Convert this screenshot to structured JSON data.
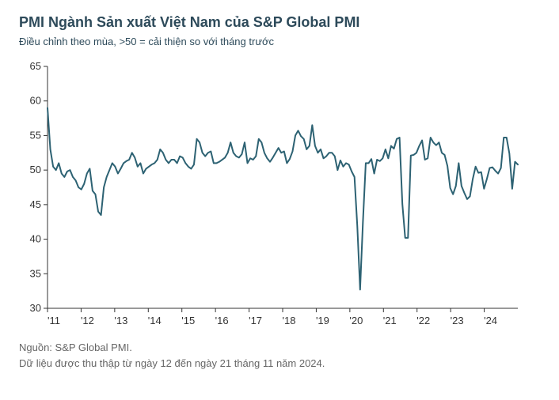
{
  "title": "PMI Ngành Sản xuất Việt Nam của S&P Global PMI",
  "subtitle": "Điều chỉnh theo mùa, >50 = cải thiện so với tháng trước",
  "source_line1": "Nguồn: S&P Global PMI.",
  "source_line2": "Dữ liệu được thu thập từ ngày 12 đến ngày 21 tháng 11 năm 2024.",
  "chart": {
    "type": "line",
    "ylim": [
      30,
      65
    ],
    "ytick_step": 5,
    "yticks": [
      30,
      35,
      40,
      45,
      50,
      55,
      60,
      65
    ],
    "xlabels": [
      "'11",
      "'12",
      "'13",
      "'14",
      "'15",
      "'16",
      "'17",
      "'18",
      "'19",
      "'20",
      "'21",
      "'22",
      "'23",
      "'24"
    ],
    "line_color": "#2d6273",
    "line_width": 2,
    "axis_color": "#333333",
    "tick_color": "#333333",
    "grid_color": "#e0e0e0",
    "background_color": "#ffffff",
    "title_fontsize": 18,
    "subtitle_fontsize": 13,
    "tick_fontsize": 13,
    "series": [
      59.0,
      53.0,
      50.5,
      50.0,
      51.0,
      49.5,
      49.0,
      49.8,
      50.0,
      49.0,
      48.5,
      47.5,
      47.2,
      48.0,
      49.5,
      50.2,
      47.0,
      46.5,
      44.0,
      43.5,
      47.5,
      49.0,
      50.0,
      51.0,
      50.5,
      49.5,
      50.2,
      51.0,
      51.3,
      51.5,
      52.5,
      51.8,
      50.5,
      51.0,
      49.5,
      50.2,
      50.5,
      50.8,
      51.0,
      51.5,
      53.0,
      52.5,
      51.5,
      51.0,
      51.5,
      51.5,
      51.0,
      52.0,
      51.8,
      51.0,
      50.5,
      50.2,
      50.8,
      54.5,
      54.0,
      52.5,
      52.0,
      52.5,
      52.7,
      51.0,
      51.0,
      51.2,
      51.5,
      51.8,
      52.5,
      54.0,
      52.5,
      52.0,
      51.8,
      52.3,
      54.0,
      51.0,
      51.7,
      51.5,
      52.0,
      54.5,
      54.0,
      52.5,
      51.7,
      51.2,
      51.8,
      52.5,
      53.2,
      52.5,
      52.7,
      51.0,
      51.6,
      52.7,
      55.0,
      55.7,
      54.9,
      54.5,
      53.0,
      53.5,
      56.5,
      53.5,
      52.5,
      53.0,
      51.7,
      52.0,
      52.5,
      52.5,
      52.0,
      50.0,
      51.4,
      50.5,
      51.0,
      50.8,
      49.8,
      49.0,
      41.9,
      32.7,
      42.5,
      51.0,
      51.0,
      51.6,
      49.5,
      51.5,
      51.3,
      51.7,
      53.0,
      51.7,
      53.5,
      53.1,
      54.5,
      54.7,
      45.1,
      40.2,
      40.2,
      52.1,
      52.2,
      52.5,
      53.5,
      54.3,
      51.5,
      51.7,
      54.7,
      54.0,
      53.6,
      54.0,
      52.5,
      52.2,
      50.6,
      47.4,
      46.5,
      47.7,
      51.0,
      47.7,
      46.7,
      45.8,
      46.2,
      48.7,
      50.5,
      49.6,
      49.7,
      47.3,
      48.7,
      50.3,
      50.4,
      49.9,
      49.5,
      50.3,
      54.7,
      54.7,
      52.4,
      47.3,
      51.2,
      50.8
    ]
  }
}
